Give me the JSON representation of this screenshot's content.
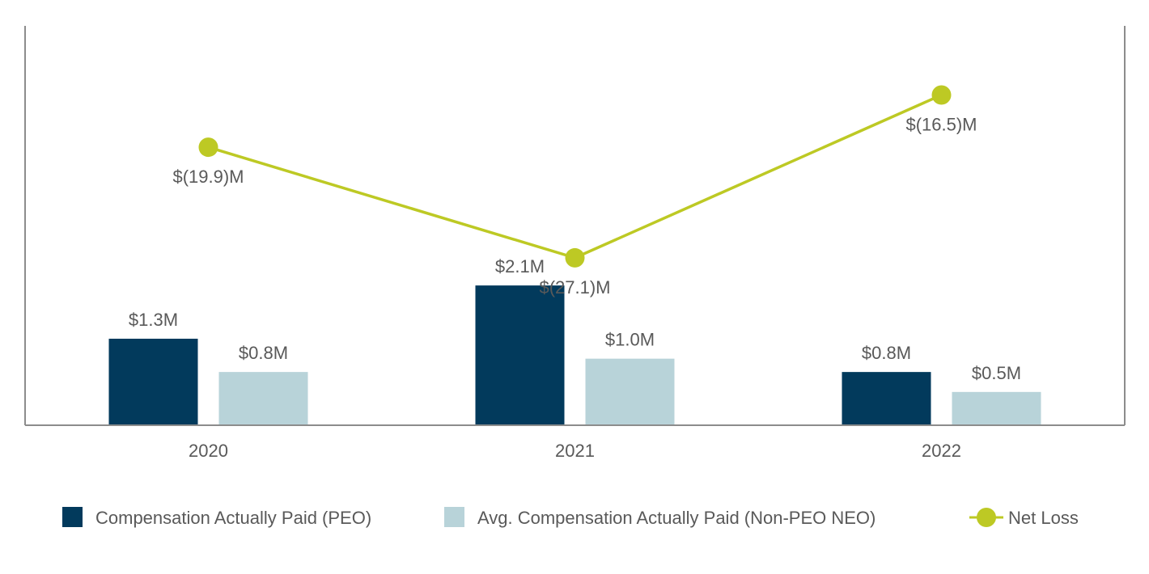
{
  "chart_data": {
    "type": "bar",
    "categories": [
      "2020",
      "2021",
      "2022"
    ],
    "series": [
      {
        "name": "Compensation Actually Paid (PEO)",
        "type": "bar",
        "axis": "left",
        "values": [
          1.3,
          2.1,
          0.8
        ],
        "labels": [
          "$1.3M",
          "$2.1M",
          "$0.8M"
        ],
        "color": "#023A5C"
      },
      {
        "name": "Avg. Compensation Actually Paid (Non-PEO NEO)",
        "type": "bar",
        "axis": "left",
        "values": [
          0.8,
          1.0,
          0.5
        ],
        "labels": [
          "$0.8M",
          "$1.0M",
          "$0.5M"
        ],
        "color": "#B8D3D9"
      },
      {
        "name": "Net Loss",
        "type": "line",
        "axis": "right",
        "values": [
          -19.9,
          -27.1,
          -16.5
        ],
        "labels": [
          "$(19.9)M",
          "$(27.1)M",
          "$(16.5)M"
        ],
        "color": "#BDC924"
      }
    ],
    "title": "",
    "xlabel": "",
    "ylabel": "",
    "ylim": [
      0,
      6.0
    ],
    "y2lim": [
      -38,
      -12
    ],
    "grid": false,
    "legend_position": "bottom",
    "axis_color": "#8C8C8C"
  }
}
